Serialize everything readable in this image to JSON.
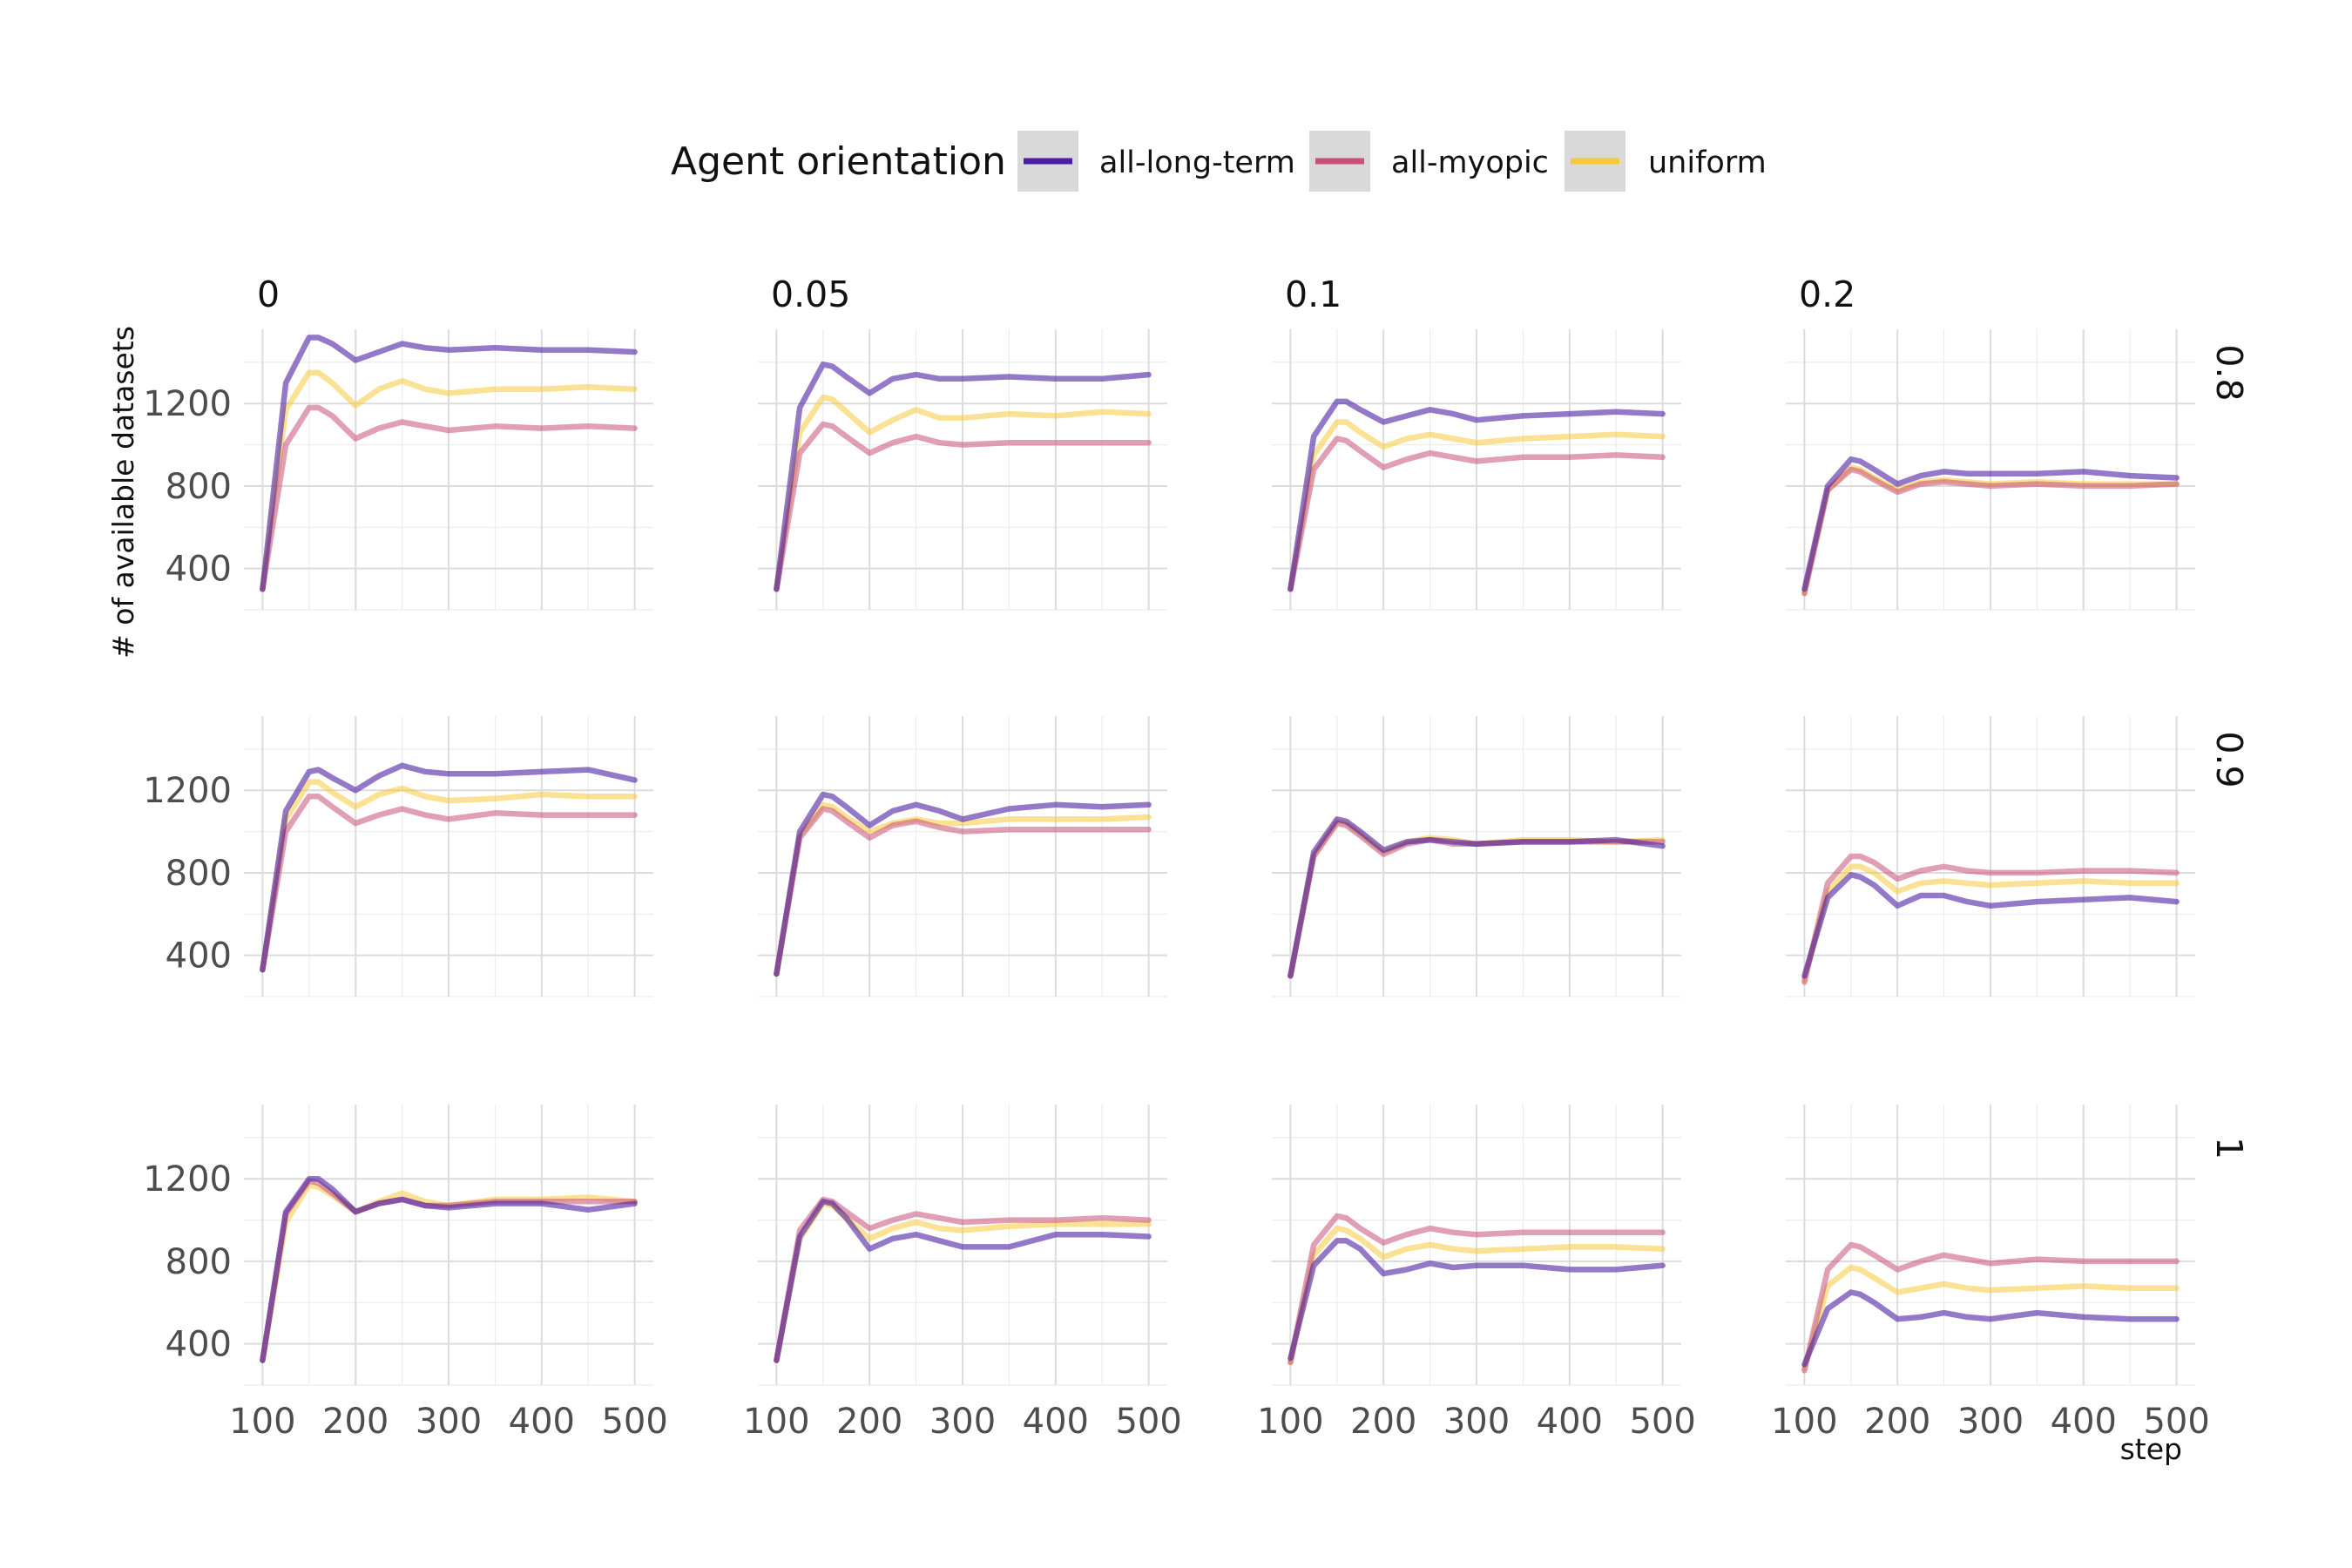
{
  "chart_data": {
    "type": "line",
    "layout": "facet-grid",
    "legend": {
      "title": "Agent orientation",
      "position": "top",
      "entries": [
        "all-long-term",
        "all-myopic",
        "uniform"
      ]
    },
    "xlabel": "step",
    "ylabel": "# of available datasets",
    "xlim": [
      80,
      520
    ],
    "ylim": [
      200,
      1560
    ],
    "x_ticks": [
      100,
      200,
      300,
      400,
      500
    ],
    "y_ticks": [
      400,
      800,
      1200
    ],
    "grid": true,
    "column_facets": [
      "0",
      "0.05",
      "0.1",
      "0.2"
    ],
    "row_facets": [
      "0.8",
      "0.9",
      "1"
    ],
    "colors": {
      "all-long-term": "#4b1fa3",
      "all-myopic": "#c9507a",
      "uniform": "#f5c93a"
    },
    "x": [
      100,
      125,
      150,
      160,
      175,
      200,
      225,
      250,
      275,
      300,
      350,
      400,
      450,
      500
    ],
    "panels": [
      {
        "row": "0.8",
        "col": "0",
        "series": [
          {
            "name": "all-long-term",
            "values": [
              300,
              1300,
              1520,
              1520,
              1490,
              1410,
              1450,
              1490,
              1470,
              1460,
              1470,
              1460,
              1460,
              1450
            ]
          },
          {
            "name": "all-myopic",
            "values": [
              300,
              1000,
              1180,
              1180,
              1140,
              1030,
              1080,
              1110,
              1090,
              1070,
              1090,
              1080,
              1090,
              1080
            ]
          },
          {
            "name": "uniform",
            "values": [
              300,
              1170,
              1350,
              1350,
              1300,
              1190,
              1270,
              1310,
              1270,
              1250,
              1270,
              1270,
              1280,
              1270
            ]
          }
        ]
      },
      {
        "row": "0.8",
        "col": "0.05",
        "series": [
          {
            "name": "all-long-term",
            "values": [
              300,
              1180,
              1390,
              1380,
              1330,
              1250,
              1320,
              1340,
              1320,
              1320,
              1330,
              1320,
              1320,
              1340
            ]
          },
          {
            "name": "all-myopic",
            "values": [
              300,
              960,
              1100,
              1090,
              1040,
              960,
              1010,
              1040,
              1010,
              1000,
              1010,
              1010,
              1010,
              1010
            ]
          },
          {
            "name": "uniform",
            "values": [
              300,
              1060,
              1230,
              1220,
              1160,
              1060,
              1120,
              1170,
              1130,
              1130,
              1150,
              1140,
              1160,
              1150
            ]
          }
        ]
      },
      {
        "row": "0.8",
        "col": "0.1",
        "series": [
          {
            "name": "all-long-term",
            "values": [
              300,
              1040,
              1210,
              1210,
              1170,
              1110,
              1140,
              1170,
              1150,
              1120,
              1140,
              1150,
              1160,
              1150
            ]
          },
          {
            "name": "all-myopic",
            "values": [
              300,
              880,
              1030,
              1020,
              970,
              890,
              930,
              960,
              940,
              920,
              940,
              940,
              950,
              940
            ]
          },
          {
            "name": "uniform",
            "values": [
              300,
              950,
              1110,
              1110,
              1060,
              990,
              1030,
              1050,
              1030,
              1010,
              1030,
              1040,
              1050,
              1040
            ]
          }
        ]
      },
      {
        "row": "0.8",
        "col": "0.2",
        "series": [
          {
            "name": "all-long-term",
            "values": [
              300,
              800,
              930,
              920,
              880,
              810,
              850,
              870,
              860,
              860,
              860,
              870,
              850,
              840
            ]
          },
          {
            "name": "all-myopic",
            "values": [
              280,
              780,
              880,
              870,
              830,
              770,
              810,
              820,
              810,
              800,
              810,
              800,
              800,
              810
            ]
          },
          {
            "name": "uniform",
            "values": [
              280,
              780,
              890,
              880,
              840,
              780,
              820,
              830,
              820,
              810,
              820,
              810,
              810,
              810
            ]
          }
        ]
      },
      {
        "row": "0.9",
        "col": "0",
        "series": [
          {
            "name": "all-long-term",
            "values": [
              330,
              1100,
              1290,
              1300,
              1260,
              1200,
              1270,
              1320,
              1290,
              1280,
              1280,
              1290,
              1300,
              1250
            ]
          },
          {
            "name": "all-myopic",
            "values": [
              330,
              1000,
              1170,
              1170,
              1120,
              1040,
              1080,
              1110,
              1080,
              1060,
              1090,
              1080,
              1080,
              1080
            ]
          },
          {
            "name": "uniform",
            "values": [
              330,
              1060,
              1240,
              1240,
              1190,
              1120,
              1180,
              1210,
              1170,
              1150,
              1160,
              1180,
              1170,
              1170
            ]
          }
        ]
      },
      {
        "row": "0.9",
        "col": "0.05",
        "series": [
          {
            "name": "all-long-term",
            "values": [
              310,
              1000,
              1180,
              1170,
              1120,
              1030,
              1100,
              1130,
              1100,
              1060,
              1110,
              1130,
              1120,
              1130
            ]
          },
          {
            "name": "all-myopic",
            "values": [
              310,
              970,
              1110,
              1100,
              1050,
              970,
              1030,
              1050,
              1020,
              1000,
              1010,
              1010,
              1010,
              1010
            ]
          },
          {
            "name": "uniform",
            "values": [
              310,
              980,
              1130,
              1120,
              1070,
              1000,
              1040,
              1060,
              1040,
              1040,
              1060,
              1060,
              1060,
              1070
            ]
          }
        ]
      },
      {
        "row": "0.9",
        "col": "0.1",
        "series": [
          {
            "name": "all-long-term",
            "values": [
              300,
              900,
              1060,
              1050,
              1000,
              910,
              950,
              960,
              950,
              940,
              950,
              950,
              960,
              930
            ]
          },
          {
            "name": "all-myopic",
            "values": [
              300,
              880,
              1040,
              1030,
              980,
              890,
              940,
              960,
              940,
              940,
              950,
              950,
              950,
              950
            ]
          },
          {
            "name": "uniform",
            "values": [
              300,
              880,
              1050,
              1040,
              990,
              900,
              950,
              970,
              960,
              940,
              960,
              960,
              950,
              960
            ]
          }
        ]
      },
      {
        "row": "0.9",
        "col": "0.2",
        "series": [
          {
            "name": "all-long-term",
            "values": [
              300,
              680,
              790,
              780,
              740,
              640,
              690,
              690,
              660,
              640,
              660,
              670,
              680,
              660
            ]
          },
          {
            "name": "all-myopic",
            "values": [
              270,
              750,
              880,
              880,
              850,
              770,
              810,
              830,
              810,
              800,
              800,
              810,
              810,
              800
            ]
          },
          {
            "name": "uniform",
            "values": [
              280,
              710,
              830,
              830,
              800,
              710,
              750,
              760,
              750,
              740,
              750,
              760,
              750,
              750
            ]
          }
        ]
      },
      {
        "row": "1",
        "col": "0",
        "series": [
          {
            "name": "all-long-term",
            "values": [
              320,
              1040,
              1200,
              1200,
              1150,
              1040,
              1080,
              1100,
              1070,
              1060,
              1080,
              1080,
              1050,
              1080
            ]
          },
          {
            "name": "all-myopic",
            "values": [
              320,
              1030,
              1190,
              1180,
              1130,
              1040,
              1080,
              1100,
              1070,
              1070,
              1090,
              1090,
              1090,
              1090
            ]
          },
          {
            "name": "uniform",
            "values": [
              320,
              990,
              1170,
              1160,
              1120,
              1040,
              1090,
              1130,
              1090,
              1070,
              1100,
              1100,
              1110,
              1090
            ]
          }
        ]
      },
      {
        "row": "1",
        "col": "0.05",
        "series": [
          {
            "name": "all-long-term",
            "values": [
              320,
              920,
              1090,
              1080,
              1010,
              860,
              910,
              930,
              900,
              870,
              870,
              930,
              930,
              920
            ]
          },
          {
            "name": "all-myopic",
            "values": [
              320,
              950,
              1100,
              1090,
              1040,
              960,
              1000,
              1030,
              1010,
              990,
              1000,
              1000,
              1010,
              1000
            ]
          },
          {
            "name": "uniform",
            "values": [
              320,
              910,
              1080,
              1070,
              1010,
              910,
              960,
              990,
              960,
              950,
              970,
              980,
              980,
              980
            ]
          }
        ]
      },
      {
        "row": "1",
        "col": "0.1",
        "series": [
          {
            "name": "all-long-term",
            "values": [
              330,
              780,
              900,
              900,
              860,
              740,
              760,
              790,
              770,
              780,
              780,
              760,
              760,
              780
            ]
          },
          {
            "name": "all-myopic",
            "values": [
              310,
              880,
              1020,
              1010,
              960,
              890,
              930,
              960,
              940,
              930,
              940,
              940,
              940,
              940
            ]
          },
          {
            "name": "uniform",
            "values": [
              310,
              830,
              960,
              950,
              910,
              820,
              860,
              880,
              860,
              850,
              860,
              870,
              870,
              860
            ]
          }
        ]
      },
      {
        "row": "1",
        "col": "0.2",
        "series": [
          {
            "name": "all-long-term",
            "values": [
              300,
              570,
              650,
              640,
              600,
              520,
              530,
              550,
              530,
              520,
              550,
              530,
              520,
              520
            ]
          },
          {
            "name": "all-myopic",
            "values": [
              270,
              760,
              880,
              870,
              830,
              760,
              800,
              830,
              810,
              790,
              810,
              800,
              800,
              800
            ]
          },
          {
            "name": "uniform",
            "values": [
              280,
              680,
              770,
              760,
              720,
              650,
              670,
              690,
              670,
              660,
              670,
              680,
              670,
              670
            ]
          }
        ]
      }
    ]
  }
}
